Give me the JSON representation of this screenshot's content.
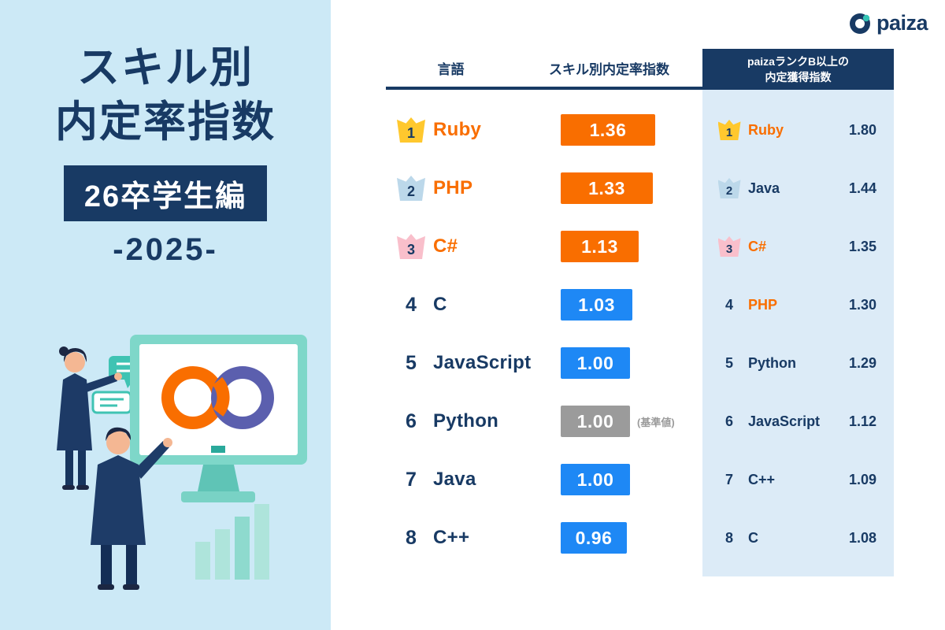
{
  "brand": {
    "logo_text": "paiza"
  },
  "left_panel": {
    "title_line1": "スキル別",
    "title_line2": "内定率指数",
    "badge": "26卒学生編",
    "year": "-2025-"
  },
  "table": {
    "header_language": "言語",
    "header_skill_index": "スキル別内定率指数",
    "header_rank_b_line1": "paizaランクB以上の",
    "header_rank_b_line2": "内定獲得指数",
    "baseline_note": "(基準値)",
    "main_ranking": [
      {
        "rank": "1",
        "language": "Ruby",
        "value": "1.36"
      },
      {
        "rank": "2",
        "language": "PHP",
        "value": "1.33"
      },
      {
        "rank": "3",
        "language": "C#",
        "value": "1.13"
      },
      {
        "rank": "4",
        "language": "C",
        "value": "1.03"
      },
      {
        "rank": "5",
        "language": "JavaScript",
        "value": "1.00"
      },
      {
        "rank": "6",
        "language": "Python",
        "value": "1.00"
      },
      {
        "rank": "7",
        "language": "Java",
        "value": "1.00"
      },
      {
        "rank": "8",
        "language": "C++",
        "value": "0.96"
      }
    ],
    "rank_b_ranking": [
      {
        "rank": "1",
        "language": "Ruby",
        "value": "1.80"
      },
      {
        "rank": "2",
        "language": "Java",
        "value": "1.44"
      },
      {
        "rank": "3",
        "language": "C#",
        "value": "1.35"
      },
      {
        "rank": "4",
        "language": "PHP",
        "value": "1.30"
      },
      {
        "rank": "5",
        "language": "Python",
        "value": "1.29"
      },
      {
        "rank": "6",
        "language": "JavaScript",
        "value": "1.12"
      },
      {
        "rank": "7",
        "language": "C++",
        "value": "1.09"
      },
      {
        "rank": "8",
        "language": "C",
        "value": "1.08"
      }
    ]
  },
  "colors": {
    "navy": "#183a64",
    "orange": "#f96e00",
    "blue": "#1e88f5",
    "gray": "#9b9b9b",
    "left_panel_blue": "#cce9f6",
    "rankb_panel_blue": "#dcebf7",
    "crown_gold": "#ffc82e",
    "crown_silver": "#bcd8ea",
    "crown_pink": "#f9bfcb",
    "teal": "#7ed7c9"
  },
  "chart_data": {
    "type": "bar",
    "title": "スキル別内定率指数 26卒学生編 -2025-",
    "categories": [
      "Ruby",
      "PHP",
      "C#",
      "C",
      "JavaScript",
      "Python",
      "Java",
      "C++"
    ],
    "series": [
      {
        "name": "スキル別内定率指数",
        "categories": [
          "Ruby",
          "PHP",
          "C#",
          "C",
          "JavaScript",
          "Python",
          "Java",
          "C++"
        ],
        "values": [
          1.36,
          1.33,
          1.13,
          1.03,
          1.0,
          1.0,
          1.0,
          0.96
        ],
        "baseline": {
          "language": "Python",
          "value": 1.0,
          "label": "基準値"
        }
      },
      {
        "name": "paizaランクB以上の内定獲得指数",
        "categories": [
          "Ruby",
          "Java",
          "C#",
          "PHP",
          "Python",
          "JavaScript",
          "C++",
          "C"
        ],
        "values": [
          1.8,
          1.44,
          1.35,
          1.3,
          1.29,
          1.12,
          1.09,
          1.08
        ]
      }
    ],
    "xlabel": "言語",
    "ylabel": "内定率指数",
    "ylim": [
      0,
      2.0
    ],
    "grid": false,
    "legend_position": "top"
  }
}
